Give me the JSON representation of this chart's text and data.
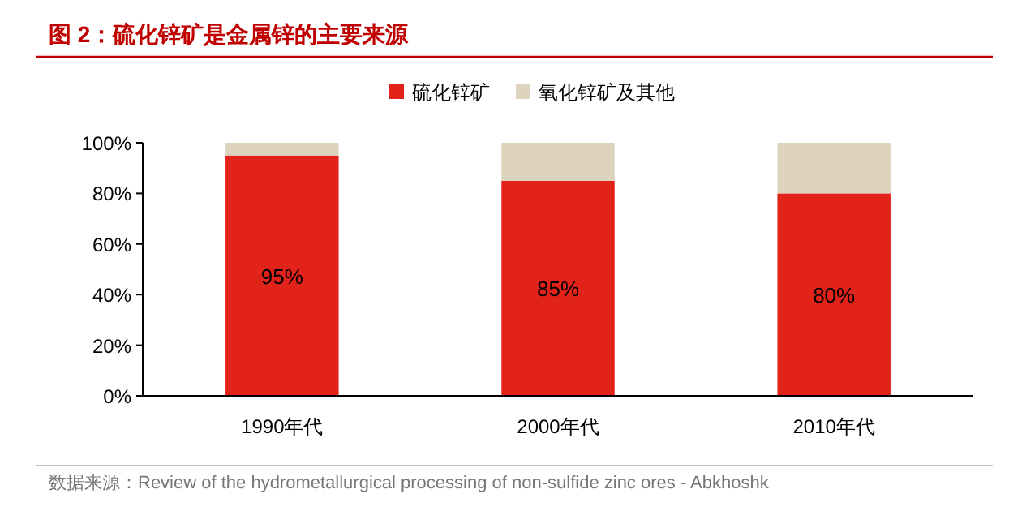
{
  "chart_data": {
    "type": "bar",
    "title": "图 2：硫化锌矿是金属锌的主要来源",
    "categories": [
      "1990年代",
      "2000年代",
      "2010年代"
    ],
    "stacked": true,
    "legend": "top",
    "grid": false,
    "series": [
      {
        "name": "硫化锌矿",
        "color": "#e2231a",
        "values": [
          95,
          85,
          80
        ],
        "value_labels": [
          "95%",
          "85%",
          "80%"
        ]
      },
      {
        "name": "氧化锌矿及其他",
        "color": "#ddd3bf",
        "values": [
          5,
          15,
          20
        ]
      }
    ],
    "ylim": [
      0,
      100
    ],
    "yticks": [
      {
        "value": 0,
        "label": "0%"
      },
      {
        "value": 20,
        "label": "20%"
      },
      {
        "value": 40,
        "label": "40%"
      },
      {
        "value": 60,
        "label": "60%"
      },
      {
        "value": 80,
        "label": "80%"
      },
      {
        "value": 100,
        "label": "100%"
      }
    ],
    "annotations": [
      "数据来源：Review of the hydrometallurgical processing of non-sulfide zinc ores - Abkhoshk"
    ]
  }
}
